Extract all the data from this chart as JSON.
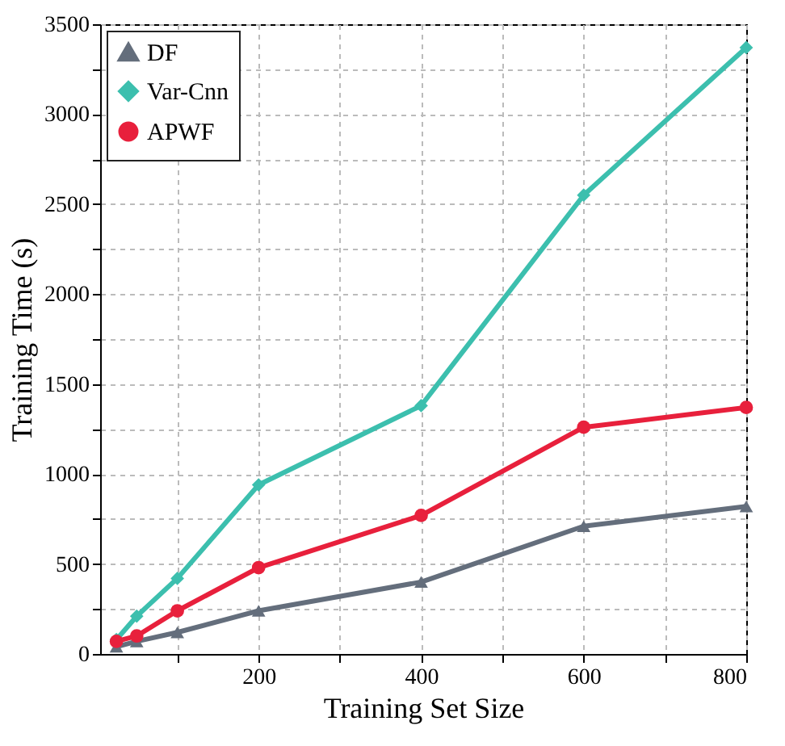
{
  "chart_data": {
    "type": "line",
    "xlabel": "Training Set Size",
    "ylabel": "Training Time (s)",
    "xlim": [
      5,
      800
    ],
    "ylim": [
      0,
      3500
    ],
    "xticks": [
      {
        "value": 100,
        "label": null
      },
      200,
      {
        "value": 300,
        "label": null
      },
      400,
      {
        "value": 500,
        "label": null
      },
      600,
      {
        "value": 700,
        "label": null
      },
      800
    ],
    "yticks": [
      0,
      {
        "value": 250,
        "label": null
      },
      500,
      {
        "value": 750,
        "label": null
      },
      1000,
      {
        "value": 1250,
        "label": null
      },
      1500,
      {
        "value": 1750,
        "label": null
      },
      2000,
      {
        "value": 2250,
        "label": null
      },
      2500,
      {
        "value": 2750,
        "label": null
      },
      3000,
      {
        "value": 3250,
        "label": null
      },
      3500
    ],
    "grid": true,
    "legend": "top left",
    "line_style": "solid",
    "series": [
      {
        "name": "DF",
        "color": "#646e7c",
        "marker": "triangle",
        "x": [
          25,
          50,
          100,
          200,
          400,
          600,
          800
        ],
        "values": [
          40,
          70,
          120,
          240,
          400,
          710,
          820
        ]
      },
      {
        "name": "Var-Cnn",
        "color": "#3cbfae",
        "marker": "diamond",
        "x": [
          25,
          50,
          100,
          200,
          400,
          600,
          800
        ],
        "values": [
          80,
          210,
          420,
          940,
          1380,
          2550,
          3370
        ]
      },
      {
        "name": "APWF",
        "color": "#e8203c",
        "marker": "circle",
        "x": [
          25,
          50,
          100,
          200,
          400,
          600,
          800
        ],
        "values": [
          70,
          100,
          240,
          480,
          770,
          1260,
          1370
        ]
      }
    ]
  }
}
